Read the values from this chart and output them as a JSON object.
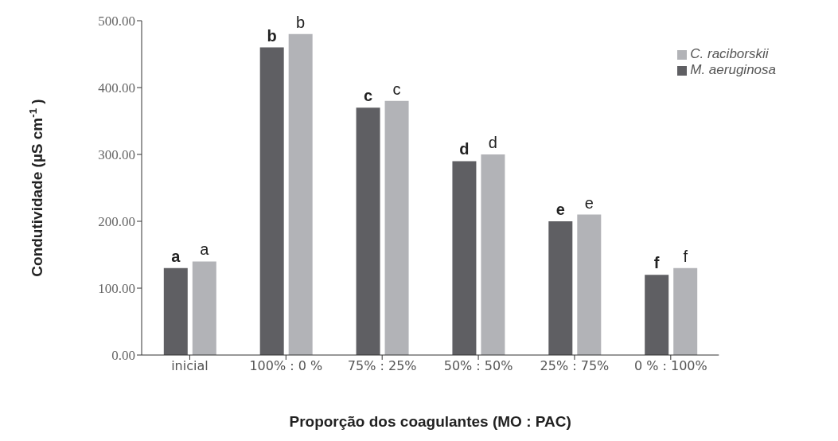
{
  "chart_data": {
    "type": "bar",
    "xlabel": "Proporção dos coagulantes (MO : PAC)",
    "ylabel": "Condutividade (µS cm$^{-1}$ )",
    "categories": [
      "inicial",
      "100% : 0 %",
      "75% : 25%",
      "50% : 50%",
      "25% : 75%",
      "0 % : 100%"
    ],
    "series": [
      {
        "name": "M. aeruginosa",
        "color": "#5f5f63",
        "values": [
          130,
          460,
          370,
          290,
          200,
          120
        ]
      },
      {
        "name": "C. raciborskii",
        "color": "#b2b3b7",
        "values": [
          140,
          480,
          380,
          300,
          210,
          130
        ]
      }
    ],
    "ylim": [
      0,
      500
    ],
    "yticks": [
      {
        "value": 0,
        "label": "0.00"
      },
      {
        "value": 100,
        "label": "100.00"
      },
      {
        "value": 200,
        "label": "200.00"
      },
      {
        "value": 300,
        "label": "300.00"
      },
      {
        "value": 400,
        "label": "400.00"
      },
      {
        "value": 500,
        "label": "500.00"
      }
    ],
    "grid": false,
    "legend": "top right",
    "annotations": [
      {
        "text": "a",
        "x": "inicial",
        "y": 130
      },
      {
        "text": "a",
        "x": "inicial",
        "y": 140
      },
      {
        "text": "b",
        "x": "100% : 0 %",
        "y": 460
      },
      {
        "text": "b",
        "x": "100% : 0 %",
        "y": 480
      },
      {
        "text": "c",
        "x": "75% : 25%",
        "y": 370
      },
      {
        "text": "c",
        "x": "75% : 25%",
        "y": 380
      },
      {
        "text": "d",
        "x": "50% : 50%",
        "y": 290
      },
      {
        "text": "d",
        "x": "50% : 50%",
        "y": 300
      },
      {
        "text": "e",
        "x": "25% : 75%",
        "y": 200
      },
      {
        "text": "e",
        "x": "25% : 75%",
        "y": 210
      },
      {
        "text": "f",
        "x": "0 % : 100%",
        "y": 120
      },
      {
        "text": "f",
        "x": "0 % : 100%",
        "y": 130
      }
    ]
  }
}
